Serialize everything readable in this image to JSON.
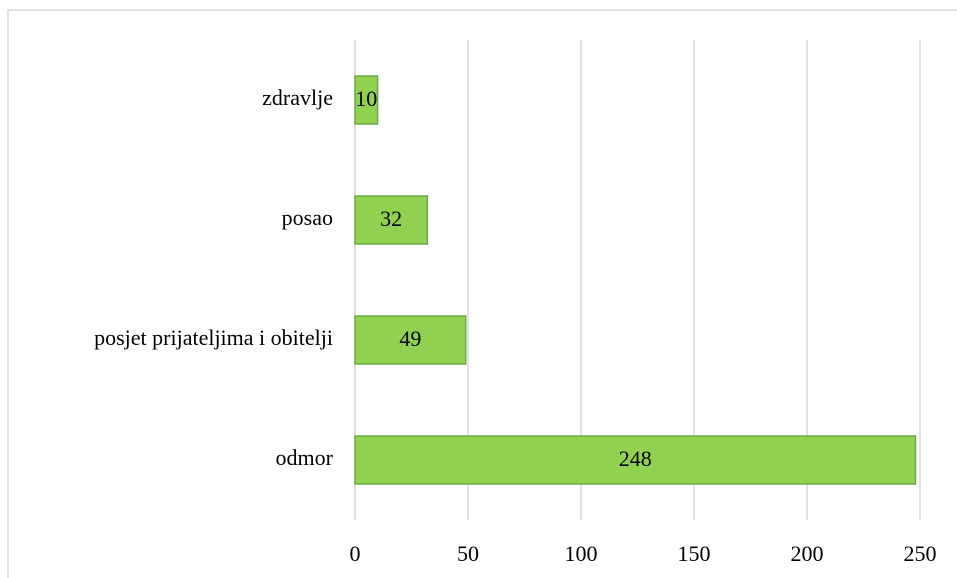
{
  "chart_data": {
    "type": "bar",
    "orientation": "horizontal",
    "categories": [
      "zdravlje",
      "posao",
      "posjet prijateljima i obitelji",
      "odmor"
    ],
    "values": [
      10,
      32,
      49,
      248
    ],
    "color": "#92d050",
    "xlim": [
      0,
      250
    ],
    "xticks": [
      0,
      50,
      100,
      150,
      200,
      250
    ],
    "grid": true
  }
}
